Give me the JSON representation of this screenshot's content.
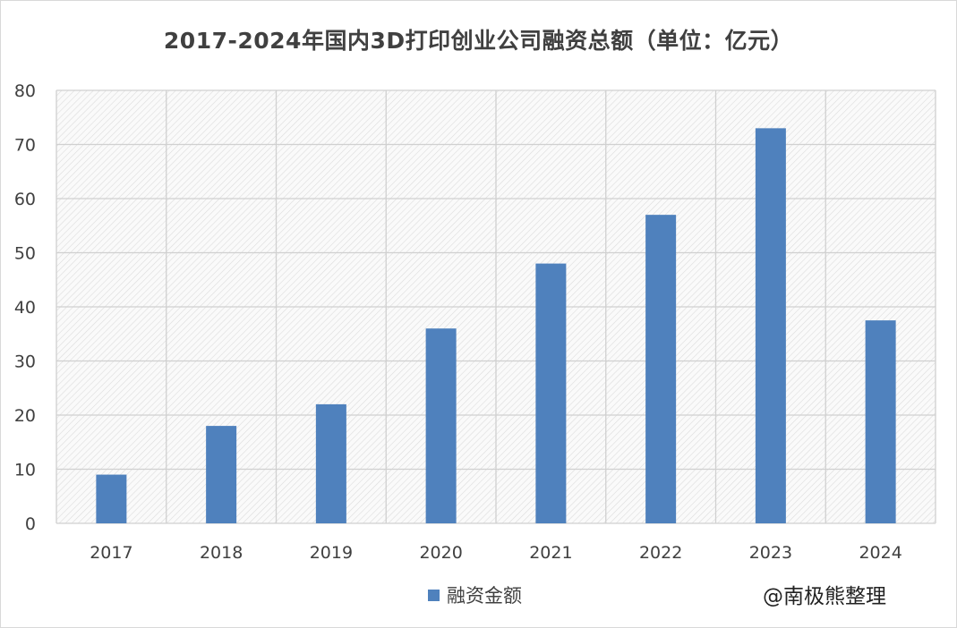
{
  "chart_data": {
    "type": "bar",
    "title": "2017-2024年国内3D打印创业公司融资总额（单位：亿元）",
    "categories": [
      "2017",
      "2018",
      "2019",
      "2020",
      "2021",
      "2022",
      "2023",
      "2024"
    ],
    "series": [
      {
        "name": "融资金额",
        "values": [
          9,
          18,
          22,
          36,
          48,
          57,
          73,
          37.5
        ],
        "color": "#4f81bd"
      }
    ],
    "ylim": [
      0,
      80
    ],
    "yticks": [
      0,
      10,
      20,
      30,
      40,
      50,
      60,
      70,
      80
    ],
    "grid": true,
    "legend_position": "bottom"
  },
  "watermark": "@南极熊整理"
}
